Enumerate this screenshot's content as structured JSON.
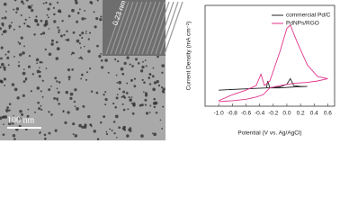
{
  "micrograph": {
    "scale_bar": "100 nm",
    "inset_label": "0.23 nm"
  },
  "chart_data": {
    "type": "line",
    "x_label": "Potential (V vs. Ag/AgCl)",
    "y_label": "Current Density (mA cm⁻²)",
    "xlim": [
      -1.2,
      0.7
    ],
    "xticks": [
      {
        "value": -1.0,
        "label": "-1.0"
      },
      -0.8,
      -0.6,
      -0.4,
      -0.2,
      {
        "value": 0.0,
        "label": "0.0"
      },
      0.2,
      0.4,
      0.6
    ],
    "ylim": [
      -0.4,
      1.8
    ],
    "legend": "upper right",
    "series": [
      {
        "name": "commercial Pd/C",
        "color": "#222222",
        "x": [
          -1.0,
          -0.6,
          -0.3,
          -0.1,
          0.0,
          0.05,
          0.1,
          0.2,
          0.3,
          0.1,
          -0.1,
          -0.25,
          -0.28,
          -0.3,
          -0.6,
          -1.0
        ],
        "values": [
          -0.05,
          -0.02,
          0.0,
          0.02,
          0.08,
          0.2,
          0.05,
          0.03,
          0.03,
          0.02,
          0.0,
          0.0,
          0.15,
          0.0,
          -0.02,
          -0.05
        ]
      },
      {
        "name": "PdNPs/RGO",
        "color": "#e0338a",
        "x": [
          -1.0,
          -0.8,
          -0.6,
          -0.45,
          -0.38,
          -0.33,
          -0.25,
          -0.1,
          0.0,
          0.05,
          0.15,
          0.3,
          0.45,
          0.6,
          0.45,
          0.3,
          0.1,
          -0.1,
          -0.25,
          -0.35,
          -0.45,
          -0.6,
          -0.8,
          -1.0
        ],
        "values": [
          -0.28,
          -0.15,
          -0.05,
          0.05,
          0.3,
          0.05,
          0.15,
          0.8,
          1.3,
          1.37,
          1.0,
          0.5,
          0.25,
          0.2,
          0.15,
          0.12,
          0.1,
          0.05,
          0.0,
          -0.15,
          -0.2,
          -0.25,
          -0.28,
          -0.3
        ]
      }
    ]
  }
}
